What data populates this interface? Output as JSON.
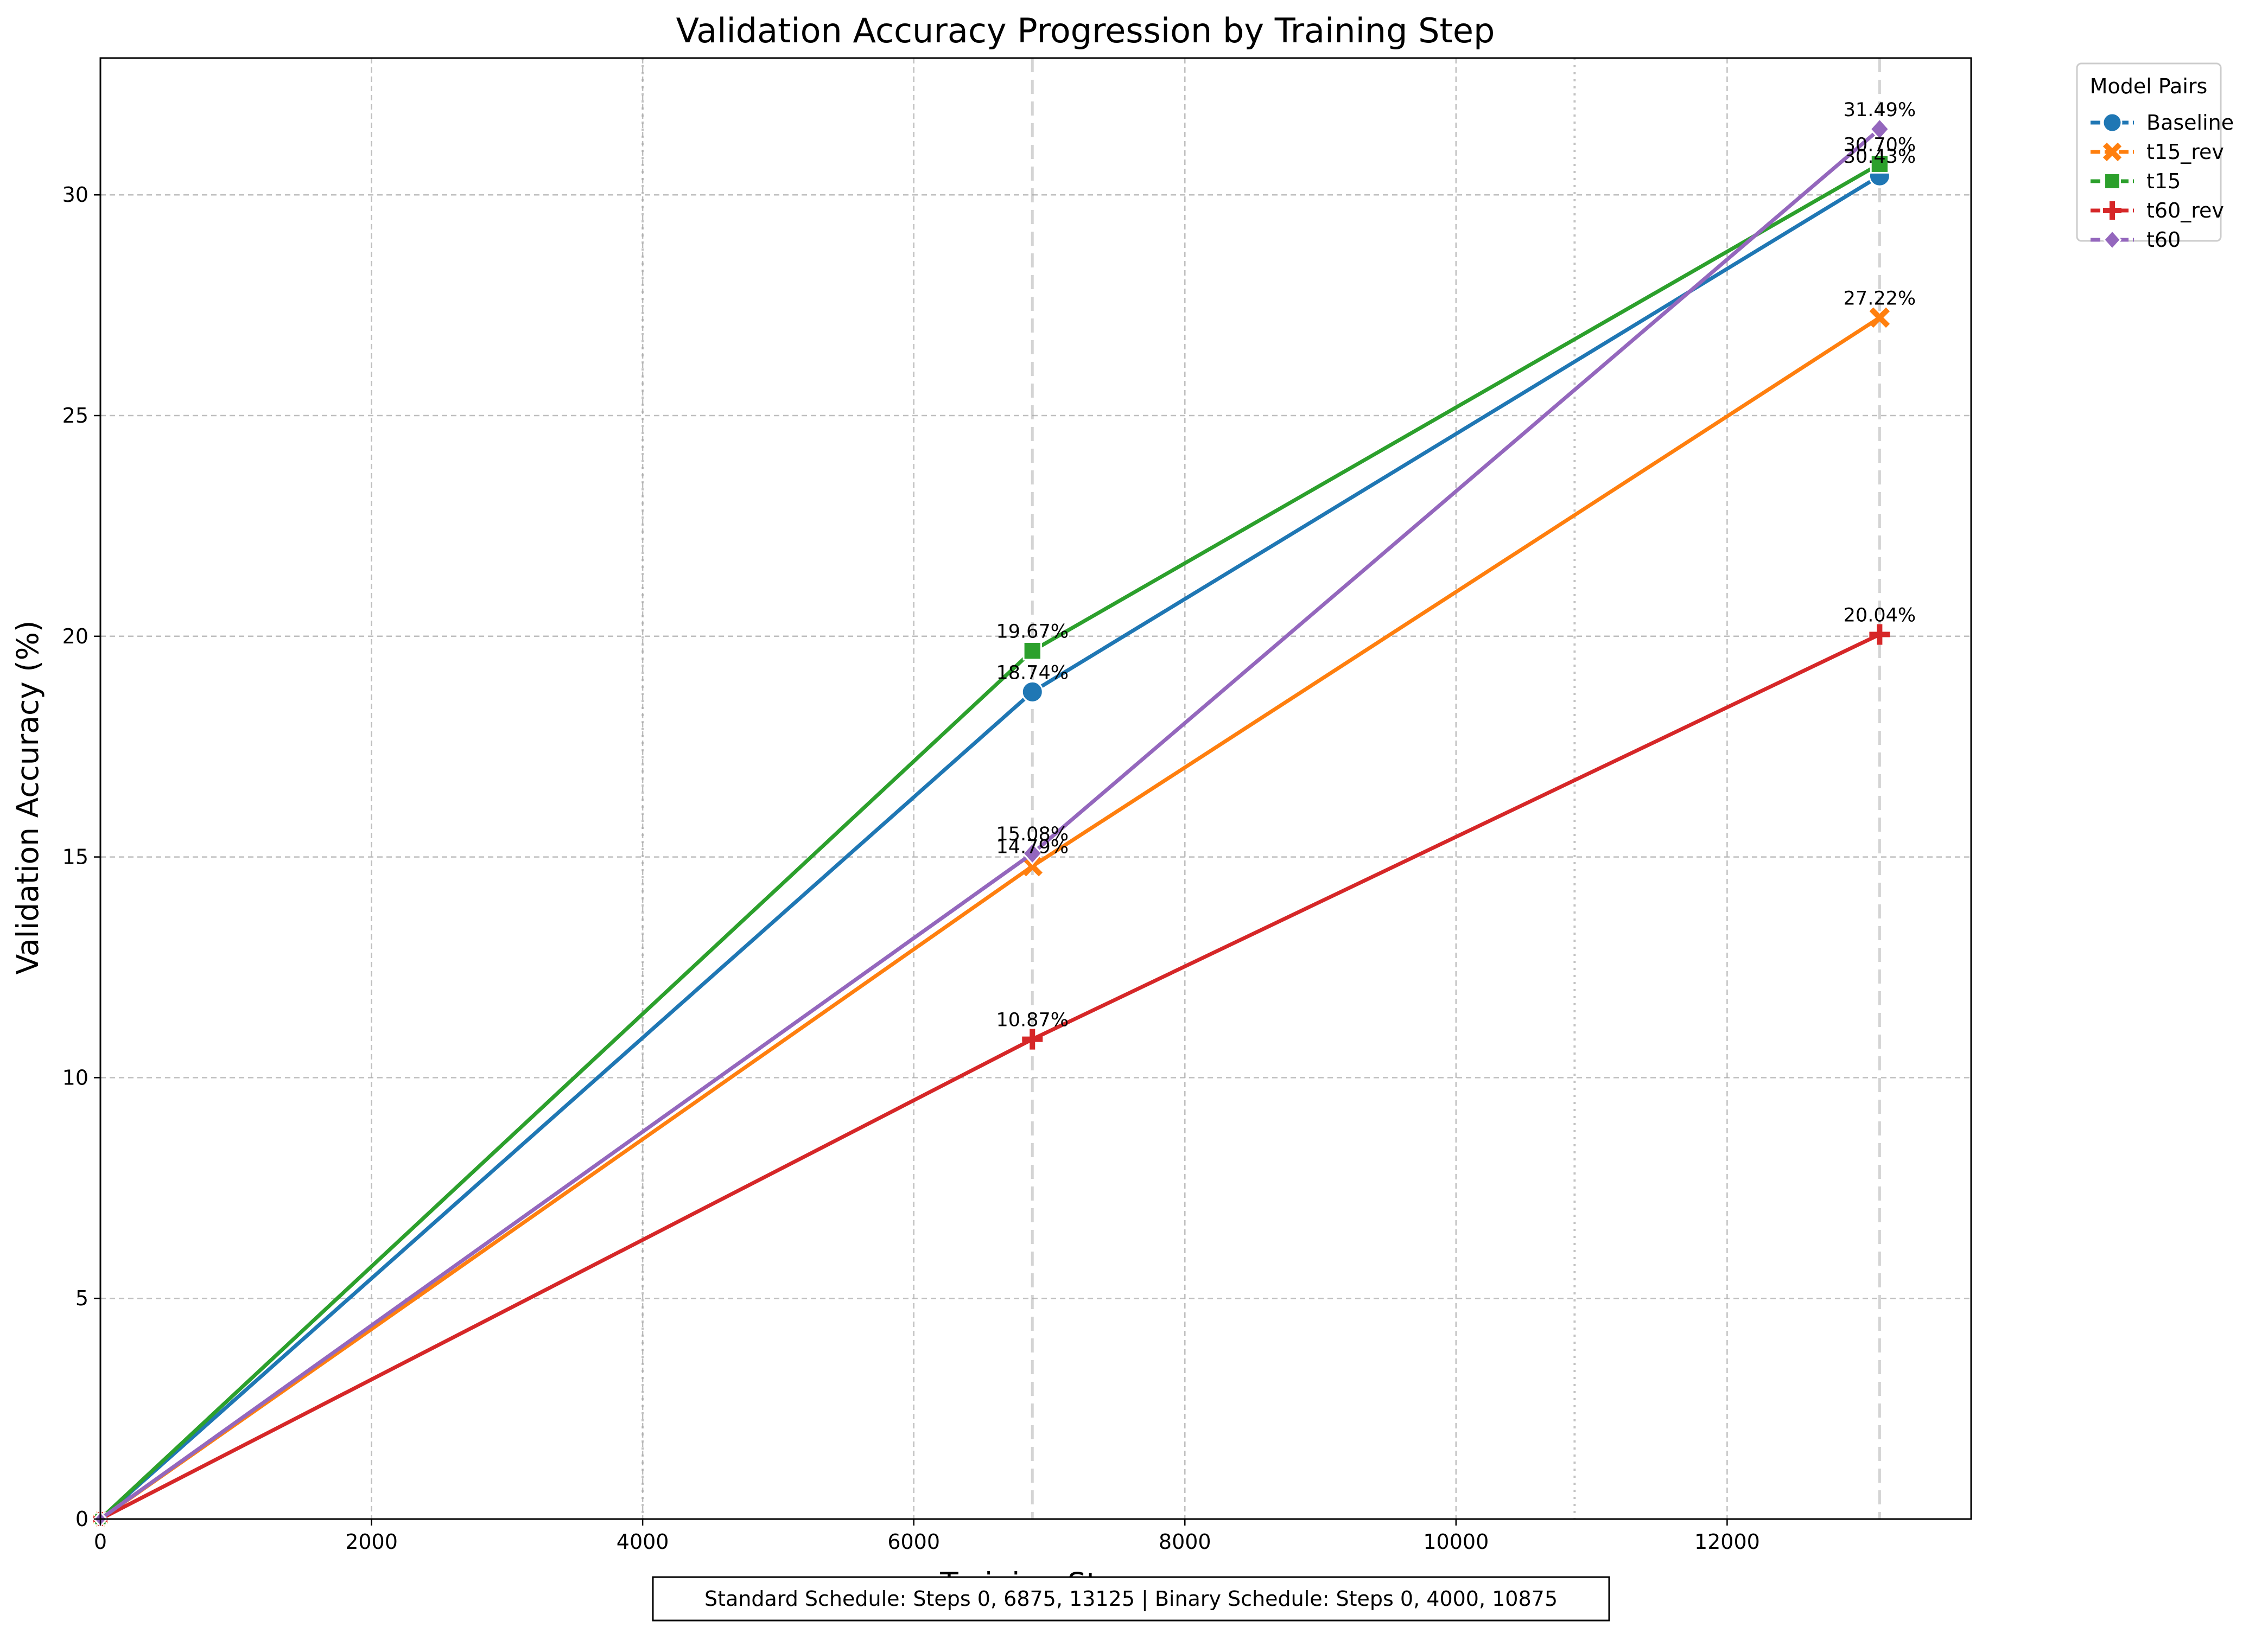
{
  "chart_data": {
    "type": "line",
    "title": "Validation Accuracy Progression by Training Step",
    "xlabel": "Training Step",
    "ylabel": "Validation Accuracy (%)",
    "xlim": [
      0,
      13800
    ],
    "ylim": [
      0,
      33.1
    ],
    "xticks": [
      0,
      2000,
      4000,
      6000,
      8000,
      10000,
      12000
    ],
    "yticks": [
      0,
      5,
      10,
      15,
      20,
      25,
      30
    ],
    "grid": true,
    "schedule_lines": {
      "standard": [
        6875,
        13125
      ],
      "binary": [
        4000,
        10875
      ]
    },
    "legend": {
      "title": "Model Pairs",
      "placement": "outside-top-right"
    },
    "series": [
      {
        "name": "Baseline",
        "color": "#1f77b4",
        "marker": "circle",
        "x": [
          0,
          6875,
          13125
        ],
        "y": [
          0,
          18.74,
          30.43
        ],
        "labels": [
          "",
          "18.74%",
          "30.43%"
        ]
      },
      {
        "name": "t15_rev",
        "color": "#ff7f0e",
        "marker": "x",
        "x": [
          0,
          6875,
          13125
        ],
        "y": [
          0,
          14.79,
          27.22
        ],
        "labels": [
          "",
          "14.79%",
          "27.22%"
        ]
      },
      {
        "name": "t15",
        "color": "#2ca02c",
        "marker": "square",
        "x": [
          0,
          6875,
          13125
        ],
        "y": [
          0,
          19.67,
          30.7
        ],
        "labels": [
          "",
          "19.67%",
          "30.70%"
        ]
      },
      {
        "name": "t60_rev",
        "color": "#d62728",
        "marker": "plus",
        "x": [
          0,
          6875,
          13125
        ],
        "y": [
          0,
          10.87,
          20.04
        ],
        "labels": [
          "",
          "10.87%",
          "20.04%"
        ]
      },
      {
        "name": "t60",
        "color": "#9467bd",
        "marker": "diamond",
        "x": [
          0,
          6875,
          13125
        ],
        "y": [
          0,
          15.08,
          31.49
        ],
        "labels": [
          "",
          "15.08%",
          "31.49%"
        ]
      }
    ],
    "footnote": "Standard Schedule: Steps 0, 6875, 13125 | Binary Schedule: Steps 0, 4000, 10875"
  }
}
